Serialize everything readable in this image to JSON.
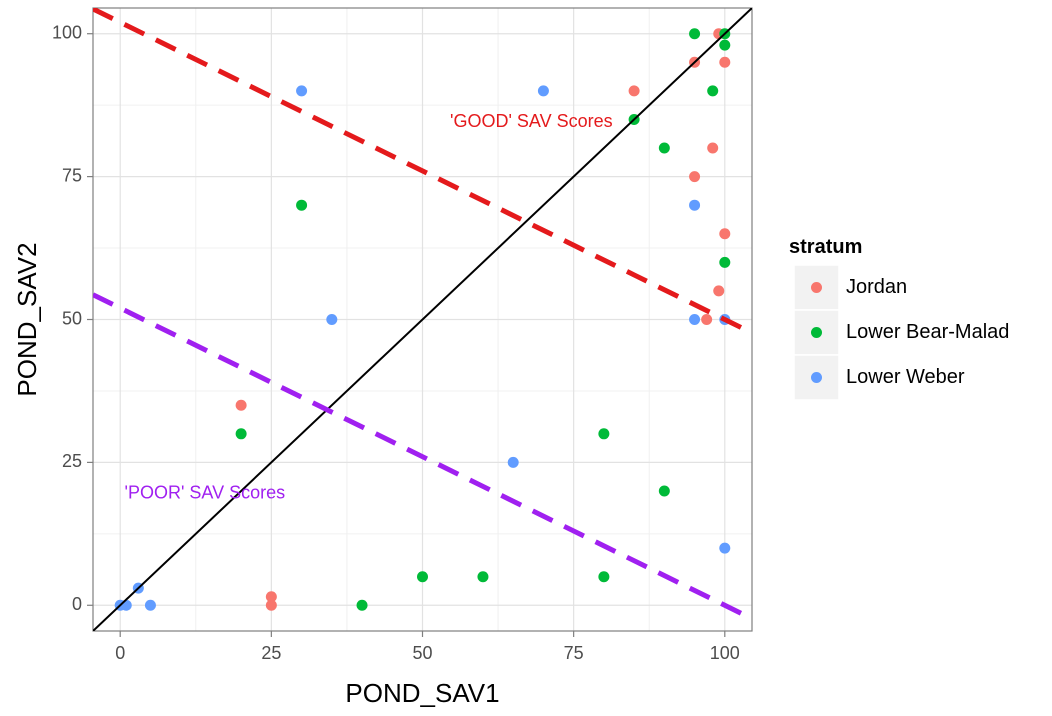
{
  "chart_data": {
    "type": "scatter",
    "xlabel": "POND_SAV1",
    "ylabel": "POND_SAV2",
    "xlim": [
      -4.5,
      104.5
    ],
    "ylim": [
      -4.5,
      104.5
    ],
    "x_ticks": [
      0,
      25,
      50,
      75,
      100
    ],
    "y_ticks": [
      0,
      25,
      50,
      75,
      100
    ],
    "grid": true,
    "legend": {
      "title": "stratum",
      "placement": "right"
    },
    "series": [
      {
        "name": "Jordan",
        "color": "#F8766D",
        "points": [
          [
            20,
            35
          ],
          [
            25,
            1.5
          ],
          [
            25,
            0
          ],
          [
            85,
            90
          ],
          [
            95,
            95
          ],
          [
            98,
            80
          ],
          [
            95,
            75
          ],
          [
            99,
            100
          ],
          [
            100,
            95
          ],
          [
            100,
            65
          ],
          [
            99,
            55
          ],
          [
            97,
            50
          ]
        ]
      },
      {
        "name": "Lower Bear-Malad",
        "color": "#00BA38",
        "points": [
          [
            20,
            30
          ],
          [
            30,
            70
          ],
          [
            40,
            0
          ],
          [
            50,
            5
          ],
          [
            60,
            5
          ],
          [
            80,
            30
          ],
          [
            80,
            5
          ],
          [
            85,
            85
          ],
          [
            90,
            80
          ],
          [
            90,
            20
          ],
          [
            95,
            100
          ],
          [
            98,
            90
          ],
          [
            100,
            100
          ],
          [
            100,
            98
          ],
          [
            100,
            60
          ]
        ]
      },
      {
        "name": "Lower Weber",
        "color": "#619CFF",
        "points": [
          [
            0,
            0
          ],
          [
            1,
            0
          ],
          [
            3,
            3
          ],
          [
            5,
            0
          ],
          [
            30,
            90
          ],
          [
            35,
            50
          ],
          [
            65,
            25
          ],
          [
            70,
            90
          ],
          [
            95,
            70
          ],
          [
            95,
            50
          ],
          [
            100,
            50
          ],
          [
            100,
            10
          ]
        ]
      }
    ],
    "reference_lines": [
      {
        "kind": "identity",
        "intercept": 0,
        "slope": 1,
        "color": "#000000",
        "dashed": false
      },
      {
        "kind": "good",
        "intercept": 102,
        "slope": -0.52,
        "color": "#E41A1C",
        "dashed": true
      },
      {
        "kind": "poor",
        "intercept": 52,
        "slope": -0.52,
        "color": "#A020F0",
        "dashed": true
      }
    ],
    "annotations": [
      {
        "text": "'GOOD' SAV Scores",
        "x": 68,
        "y": 84.5,
        "color": "#E41A1C"
      },
      {
        "text": "'POOR' SAV Scores",
        "x": 14,
        "y": 19.5,
        "color": "#A020F0"
      }
    ]
  }
}
